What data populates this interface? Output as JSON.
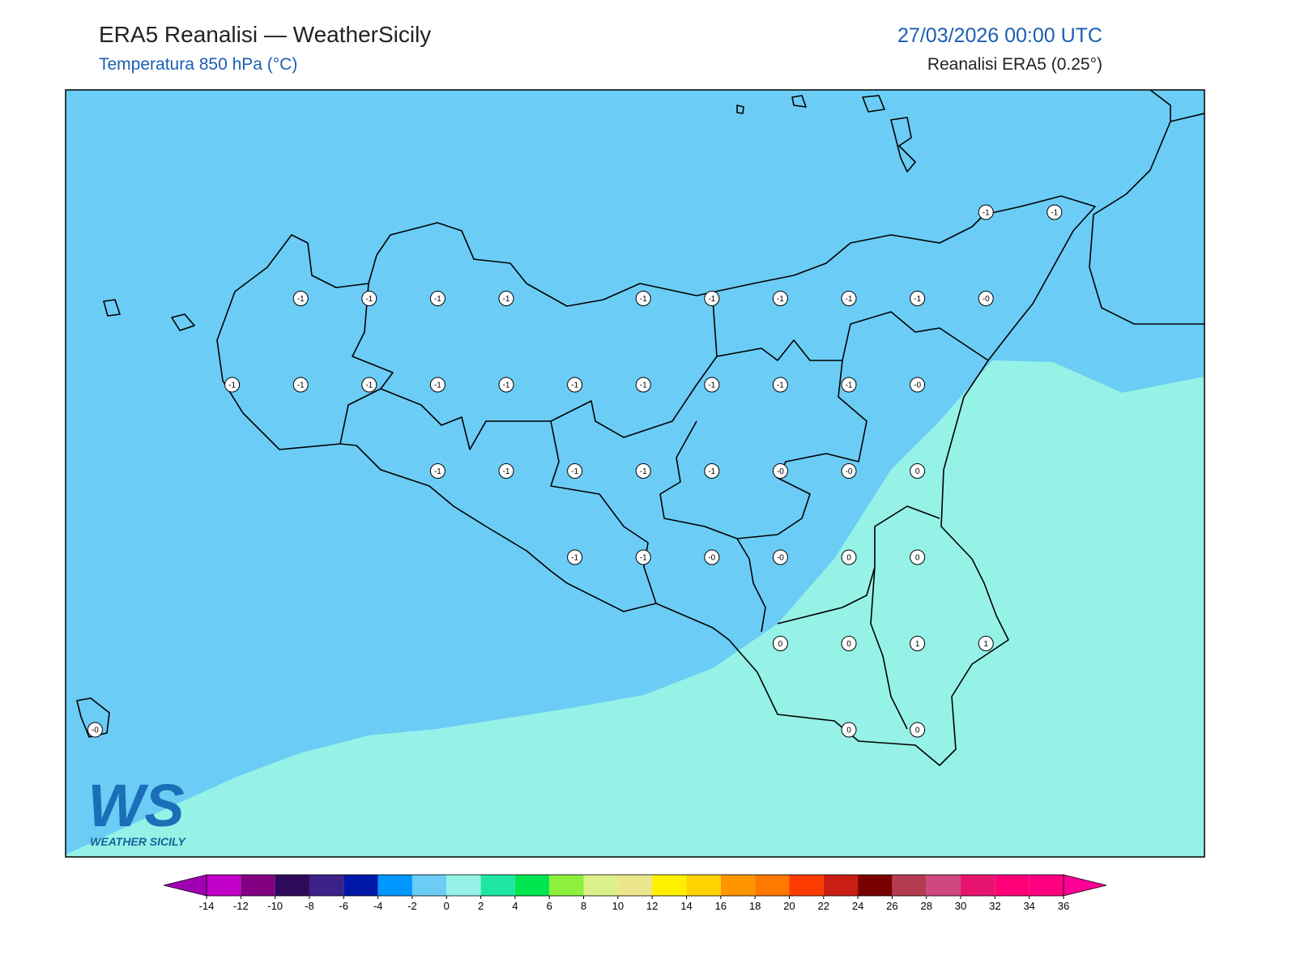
{
  "header": {
    "title": "ERA5 Reanalisi — WeatherSicily",
    "subtitle": "Temperatura 850 hPa (°C)",
    "date": "27/03/2026 00:00 UTC",
    "source": "Reanalisi ERA5 (0.25°)"
  },
  "map": {
    "colors": [
      "#6bcdf5",
      "#96f2e6"
    ],
    "points": [
      [
        null,
        null,
        null,
        null,
        null,
        null,
        null,
        null,
        null,
        null,
        null,
        null,
        null,
        "-1",
        "-1"
      ],
      [
        null,
        null,
        null,
        "-1",
        "-1",
        "-1",
        "-1",
        null,
        "-1",
        "-1",
        "-1",
        "-1",
        "-1",
        "-0",
        null
      ],
      [
        null,
        null,
        "-1",
        "-1",
        "-1",
        "-1",
        "-1",
        "-1",
        "-1",
        "-1",
        "-1",
        "-1",
        "-0",
        null,
        null
      ],
      [
        null,
        null,
        null,
        null,
        null,
        "-1",
        "-1",
        "-1",
        "-1",
        "-1",
        "-0",
        "-0",
        "0",
        null,
        null
      ],
      [
        null,
        null,
        null,
        null,
        null,
        null,
        null,
        "-1",
        "-1",
        "-0",
        "-0",
        "0",
        "0",
        null,
        null
      ],
      [
        null,
        null,
        null,
        null,
        null,
        null,
        null,
        null,
        null,
        null,
        "0",
        "0",
        "1",
        "1",
        null
      ],
      [
        "-0",
        null,
        null,
        null,
        null,
        null,
        null,
        null,
        null,
        null,
        null,
        "0",
        "0",
        null,
        null
      ]
    ]
  },
  "logo": {
    "text": "WS",
    "subtext": "WEATHER SICILY"
  },
  "colorbar": {
    "ticks": [
      -14,
      -12,
      -10,
      -8,
      -6,
      -4,
      -2,
      0,
      2,
      4,
      6,
      8,
      10,
      12,
      14,
      16,
      18,
      20,
      22,
      24,
      26,
      28,
      30,
      32,
      34,
      36
    ],
    "colors": [
      "#c000c8",
      "#820082",
      "#2e0a5a",
      "#3c2288",
      "#0018a8",
      "#0096ff",
      "#6bcdf5",
      "#96f2e6",
      "#1ee6a0",
      "#00e650",
      "#8cf03c",
      "#dcf08c",
      "#ebe68c",
      "#fff000",
      "#ffd200",
      "#ff9600",
      "#ff7800",
      "#ff3c00",
      "#c81e14",
      "#780000",
      "#b43c50",
      "#d04680",
      "#e6146e",
      "#ff0078",
      "#ff0080"
    ],
    "under": "#a000b4",
    "over": "#ff0096"
  }
}
